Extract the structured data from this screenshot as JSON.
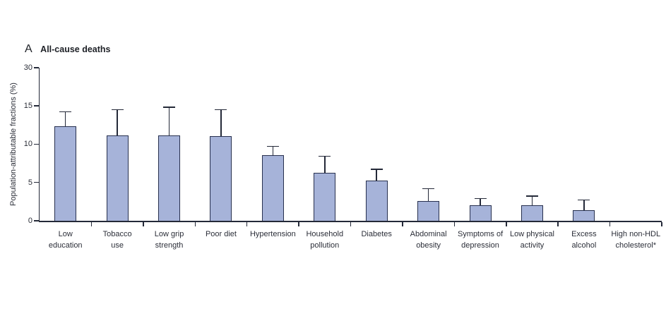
{
  "figure": {
    "panel_letter": "A",
    "panel_title": "All-cause deaths"
  },
  "chart_data": {
    "type": "bar",
    "title": "A All-cause deaths",
    "ylabel": "Population-attributable fractions (%)",
    "xlabel": "",
    "ylim": [
      0,
      30
    ],
    "yticks": [
      0,
      5,
      10,
      15,
      30
    ],
    "axis_break": {
      "above": 15,
      "note": "segment from 15 to 30 is compressed into one tick interval"
    },
    "grid": false,
    "legend": "none",
    "error_bars": "upper only",
    "colors": {
      "bar_fill": "#a6b3d9",
      "bar_border": "#27304e",
      "axis": "#242938",
      "text": "#2b2e38",
      "title_text": "#1d2026",
      "background": "#ffffff"
    },
    "categories": [
      "Low education",
      "Tobacco use",
      "Low grip strength",
      "Poor diet",
      "Hypertension",
      "Household pollution",
      "Diabetes",
      "Abdominal obesity",
      "Symptoms of depression",
      "Low physical activity",
      "Excess alcohol",
      "High non-HDL cholesterol*"
    ],
    "category_label_lines": [
      [
        "Low",
        "education"
      ],
      [
        "Tobacco",
        "use"
      ],
      [
        "Low grip",
        "strength"
      ],
      [
        "Poor diet"
      ],
      [
        "Hypertension"
      ],
      [
        "Household",
        "pollution"
      ],
      [
        "Diabetes"
      ],
      [
        "Abdominal",
        "obesity"
      ],
      [
        "Symptoms of",
        "depression"
      ],
      [
        "Low physical",
        "activity"
      ],
      [
        "Excess",
        "alcohol"
      ],
      [
        "High non-HDL",
        "cholesterol*"
      ]
    ],
    "series": [
      {
        "name": "Population-attributable fraction (%)",
        "values": [
          12.3,
          11.1,
          11.1,
          11.0,
          8.6,
          6.3,
          5.2,
          2.6,
          2.0,
          2.0,
          1.4,
          0
        ],
        "upper_ci": [
          14.2,
          14.5,
          14.8,
          14.5,
          9.7,
          8.4,
          6.7,
          4.2,
          2.9,
          3.2,
          2.7,
          null
        ]
      }
    ]
  }
}
